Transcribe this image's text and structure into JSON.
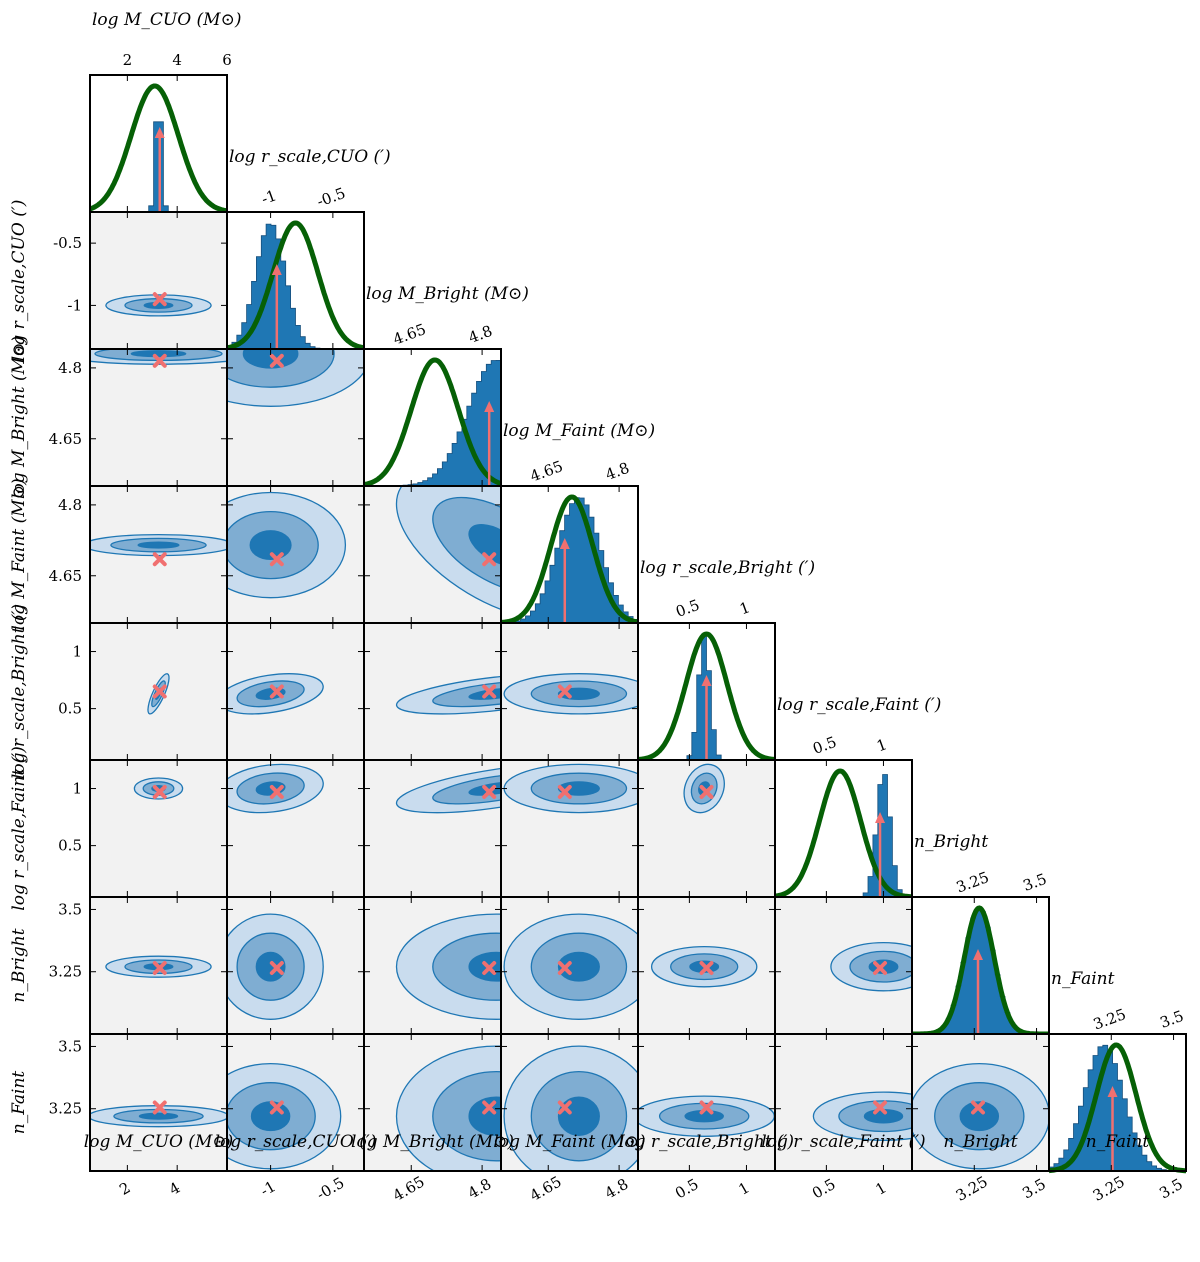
{
  "chart_data": {
    "type": "corner",
    "parameters": [
      {
        "label": "log M_CUO (M⊙)",
        "short": "logM_CUO",
        "range": [
          0.5,
          6.0
        ],
        "ticks": [
          2,
          4,
          6
        ],
        "bottom_ticks": [
          2,
          4
        ],
        "truth": 3.3,
        "post_mean": 3.25,
        "post_sd": 0.12,
        "prior_mean": 3.1,
        "prior_sd": 0.95
      },
      {
        "label": "log r_scale,CUO (′)",
        "short": "logr_CUO",
        "range": [
          -1.35,
          -0.25
        ],
        "ticks": [
          -1.0,
          -0.5
        ],
        "bottom_ticks": [
          -1.0,
          -0.5
        ],
        "truth": -0.95,
        "post_mean": -1.0,
        "post_sd": 0.12,
        "prior_mean": -0.8,
        "prior_sd": 0.18
      },
      {
        "label": "log M_Bright (M⊙)",
        "short": "logM_Bright",
        "range": [
          4.55,
          4.84
        ],
        "ticks": [
          4.65,
          4.8
        ],
        "bottom_ticks": [
          4.65,
          4.8
        ],
        "truth": 4.815,
        "post_mean": 4.83,
        "post_sd": 0.06,
        "prior_mean": 4.7,
        "prior_sd": 0.05
      },
      {
        "label": "log M_Faint (M⊙)",
        "short": "logM_Faint",
        "range": [
          4.55,
          4.84
        ],
        "ticks": [
          4.65,
          4.8
        ],
        "bottom_ticks": [
          4.65,
          4.8
        ],
        "truth": 4.685,
        "post_mean": 4.715,
        "post_sd": 0.045,
        "prior_mean": 4.7,
        "prior_sd": 0.045
      },
      {
        "label": "log r_scale,Bright (′)",
        "short": "logr_Bright",
        "range": [
          0.05,
          1.25
        ],
        "ticks": [
          0.5,
          1.0
        ],
        "bottom_ticks": [
          0.5,
          1.0
        ],
        "truth": 0.65,
        "post_mean": 0.63,
        "post_sd": 0.05,
        "prior_mean": 0.65,
        "prior_sd": 0.18
      },
      {
        "label": "log r_scale,Faint (′)",
        "short": "logr_Faint",
        "range": [
          0.05,
          1.25
        ],
        "ticks": [
          0.5,
          1.0
        ],
        "bottom_ticks": [
          0.5,
          1.0
        ],
        "truth": 0.97,
        "post_mean": 1.0,
        "post_sd": 0.06,
        "prior_mean": 0.62,
        "prior_sd": 0.18
      },
      {
        "label": "n_Bright",
        "short": "n_Bright",
        "range": [
          3.0,
          3.55
        ],
        "ticks": [
          3.25,
          3.5
        ],
        "bottom_ticks": [
          3.25,
          3.5
        ],
        "truth": 3.265,
        "post_mean": 3.27,
        "post_sd": 0.06,
        "prior_mean": 3.27,
        "prior_sd": 0.06
      },
      {
        "label": "n_Faint",
        "short": "n_Faint",
        "range": [
          3.0,
          3.55
        ],
        "ticks": [
          3.25,
          3.5
        ],
        "bottom_ticks": [
          3.25,
          3.5
        ],
        "truth": 3.255,
        "post_mean": 3.22,
        "post_sd": 0.08,
        "prior_mean": 3.27,
        "prior_sd": 0.08
      }
    ],
    "contour_levels": [
      "1σ",
      "2σ",
      "3σ"
    ],
    "contour_extent_sd": [
      0.6,
      1.4,
      2.2
    ],
    "correlations": [
      [
        1.0,
        0.0,
        0.0,
        0.0,
        0.0,
        0.0,
        0.0,
        0.0
      ],
      [
        0.0,
        1.0,
        0.0,
        0.0,
        0.0,
        0.0,
        0.0,
        0.0
      ],
      [
        0.0,
        0.0,
        1.0,
        0.0,
        0.0,
        0.0,
        0.0,
        0.0
      ],
      [
        0.0,
        0.0,
        -0.55,
        1.0,
        0.0,
        0.0,
        0.0,
        0.0
      ],
      [
        0.8,
        0.35,
        0.55,
        0.0,
        1.0,
        0.0,
        0.0,
        0.0
      ],
      [
        0.0,
        0.2,
        0.6,
        0.0,
        0.2,
        1.0,
        0.0,
        0.0
      ],
      [
        0.0,
        0.0,
        0.0,
        0.0,
        0.0,
        0.0,
        1.0,
        0.0
      ],
      [
        0.0,
        0.0,
        0.0,
        0.0,
        0.0,
        0.0,
        0.0,
        1.0
      ]
    ],
    "colors": {
      "panel_bg": "#f2f2f2",
      "posterior": "#1f77b4",
      "contour_fills": [
        "#1f77b4",
        "#7fadd2",
        "#c9dcee"
      ],
      "contour_line": "#1f77b4",
      "prior": "#066006",
      "truth": "#f07070"
    }
  }
}
